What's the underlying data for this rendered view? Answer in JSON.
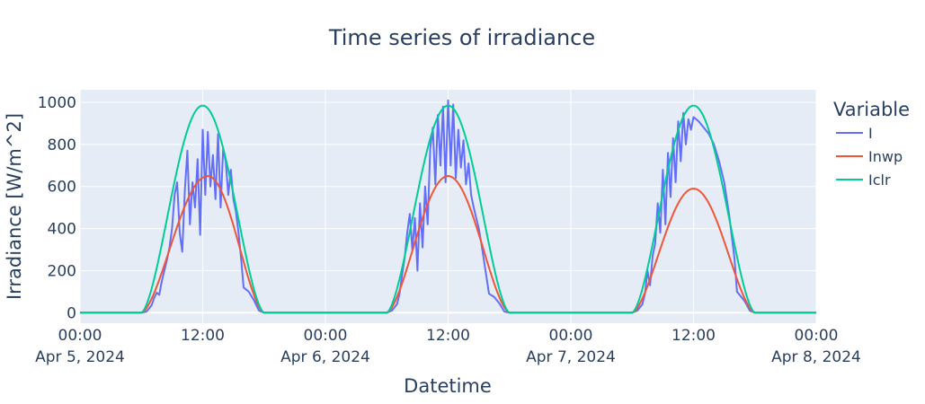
{
  "chart_data": {
    "type": "line",
    "title": "Time series of irradiance",
    "xlabel": "Datetime",
    "ylabel": "Irradiance [W/m^2]",
    "xlim": [
      "2024-04-05T00:00",
      "2024-04-08T00:00"
    ],
    "ylim": [
      -50,
      1060
    ],
    "y_ticks": [
      0,
      200,
      400,
      600,
      800,
      1000
    ],
    "y_tick_labels": [
      "0",
      "200",
      "400",
      "600",
      "800",
      "1000"
    ],
    "x_ticks": [
      "2024-04-05T00:00",
      "2024-04-05T12:00",
      "2024-04-06T00:00",
      "2024-04-06T12:00",
      "2024-04-07T00:00",
      "2024-04-07T12:00",
      "2024-04-08T00:00"
    ],
    "x_tick_labels": [
      {
        "time": "00:00",
        "date": "Apr 5, 2024"
      },
      {
        "time": "12:00",
        "date": ""
      },
      {
        "time": "00:00",
        "date": "Apr 6, 2024"
      },
      {
        "time": "12:00",
        "date": ""
      },
      {
        "time": "00:00",
        "date": "Apr 7, 2024"
      },
      {
        "time": "12:00",
        "date": ""
      },
      {
        "time": "00:00",
        "date": "Apr 8, 2024"
      }
    ],
    "grid": true,
    "legend": {
      "title": "Variable",
      "position": "right"
    },
    "series": [
      {
        "name": "I",
        "color": "#636efa",
        "points": [
          [
            "2024-04-05T00:00",
            0
          ],
          [
            "2024-04-05T06:00",
            0
          ],
          [
            "2024-04-05T06:30",
            5
          ],
          [
            "2024-04-05T07:00",
            35
          ],
          [
            "2024-04-05T07:15",
            70
          ],
          [
            "2024-04-05T07:30",
            95
          ],
          [
            "2024-04-05T07:45",
            85
          ],
          [
            "2024-04-05T08:00",
            150
          ],
          [
            "2024-04-05T08:15",
            200
          ],
          [
            "2024-04-05T08:30",
            250
          ],
          [
            "2024-04-05T08:45",
            310
          ],
          [
            "2024-04-05T09:00",
            400
          ],
          [
            "2024-04-05T09:15",
            560
          ],
          [
            "2024-04-05T09:30",
            620
          ],
          [
            "2024-04-05T09:45",
            380
          ],
          [
            "2024-04-05T10:00",
            290
          ],
          [
            "2024-04-05T10:15",
            580
          ],
          [
            "2024-04-05T10:30",
            770
          ],
          [
            "2024-04-05T10:45",
            420
          ],
          [
            "2024-04-05T11:00",
            620
          ],
          [
            "2024-04-05T11:15",
            500
          ],
          [
            "2024-04-05T11:30",
            730
          ],
          [
            "2024-04-05T11:45",
            370
          ],
          [
            "2024-04-05T12:00",
            870
          ],
          [
            "2024-04-05T12:15",
            560
          ],
          [
            "2024-04-05T12:30",
            860
          ],
          [
            "2024-04-05T12:45",
            600
          ],
          [
            "2024-04-05T13:00",
            750
          ],
          [
            "2024-04-05T13:15",
            540
          ],
          [
            "2024-04-05T13:30",
            850
          ],
          [
            "2024-04-05T13:45",
            500
          ],
          [
            "2024-04-05T14:00",
            780
          ],
          [
            "2024-04-05T14:15",
            720
          ],
          [
            "2024-04-05T14:30",
            560
          ],
          [
            "2024-04-05T14:45",
            680
          ],
          [
            "2024-04-05T15:00",
            540
          ],
          [
            "2024-04-05T15:15",
            480
          ],
          [
            "2024-04-05T15:30",
            380
          ],
          [
            "2024-04-05T15:45",
            260
          ],
          [
            "2024-04-05T16:00",
            120
          ],
          [
            "2024-04-05T16:30",
            100
          ],
          [
            "2024-04-05T17:00",
            60
          ],
          [
            "2024-04-05T17:30",
            10
          ],
          [
            "2024-04-05T18:00",
            0
          ],
          [
            "2024-04-06T06:00",
            0
          ],
          [
            "2024-04-06T06:30",
            10
          ],
          [
            "2024-04-06T07:00",
            40
          ],
          [
            "2024-04-06T07:15",
            90
          ],
          [
            "2024-04-06T07:30",
            180
          ],
          [
            "2024-04-06T07:45",
            260
          ],
          [
            "2024-04-06T08:00",
            380
          ],
          [
            "2024-04-06T08:15",
            470
          ],
          [
            "2024-04-06T08:30",
            300
          ],
          [
            "2024-04-06T08:45",
            450
          ],
          [
            "2024-04-06T09:00",
            200
          ],
          [
            "2024-04-06T09:15",
            520
          ],
          [
            "2024-04-06T09:30",
            310
          ],
          [
            "2024-04-06T09:45",
            600
          ],
          [
            "2024-04-06T10:00",
            420
          ],
          [
            "2024-04-06T10:15",
            780
          ],
          [
            "2024-04-06T10:30",
            880
          ],
          [
            "2024-04-06T10:45",
            610
          ],
          [
            "2024-04-06T11:00",
            940
          ],
          [
            "2024-04-06T11:15",
            700
          ],
          [
            "2024-04-06T11:30",
            980
          ],
          [
            "2024-04-06T11:45",
            620
          ],
          [
            "2024-04-06T12:00",
            1010
          ],
          [
            "2024-04-06T12:15",
            700
          ],
          [
            "2024-04-06T12:30",
            990
          ],
          [
            "2024-04-06T12:45",
            640
          ],
          [
            "2024-04-06T13:00",
            870
          ],
          [
            "2024-04-06T13:15",
            690
          ],
          [
            "2024-04-06T13:30",
            820
          ],
          [
            "2024-04-06T13:45",
            610
          ],
          [
            "2024-04-06T14:00",
            710
          ],
          [
            "2024-04-06T14:15",
            560
          ],
          [
            "2024-04-06T14:30",
            500
          ],
          [
            "2024-04-06T14:45",
            450
          ],
          [
            "2024-04-06T15:00",
            400
          ],
          [
            "2024-04-06T15:15",
            330
          ],
          [
            "2024-04-06T15:30",
            250
          ],
          [
            "2024-04-06T15:45",
            170
          ],
          [
            "2024-04-06T16:00",
            90
          ],
          [
            "2024-04-06T16:30",
            75
          ],
          [
            "2024-04-06T17:00",
            45
          ],
          [
            "2024-04-06T17:30",
            5
          ],
          [
            "2024-04-06T18:00",
            0
          ],
          [
            "2024-04-07T06:00",
            0
          ],
          [
            "2024-04-07T06:30",
            10
          ],
          [
            "2024-04-07T07:00",
            40
          ],
          [
            "2024-04-07T07:15",
            90
          ],
          [
            "2024-04-07T07:30",
            200
          ],
          [
            "2024-04-07T07:45",
            130
          ],
          [
            "2024-04-07T08:00",
            270
          ],
          [
            "2024-04-07T08:15",
            330
          ],
          [
            "2024-04-07T08:30",
            520
          ],
          [
            "2024-04-07T08:45",
            380
          ],
          [
            "2024-04-07T09:00",
            680
          ],
          [
            "2024-04-07T09:15",
            420
          ],
          [
            "2024-04-07T09:30",
            760
          ],
          [
            "2024-04-07T09:45",
            550
          ],
          [
            "2024-04-07T10:00",
            830
          ],
          [
            "2024-04-07T10:15",
            620
          ],
          [
            "2024-04-07T10:30",
            910
          ],
          [
            "2024-04-07T10:45",
            720
          ],
          [
            "2024-04-07T11:00",
            950
          ],
          [
            "2024-04-07T11:15",
            800
          ],
          [
            "2024-04-07T11:30",
            920
          ],
          [
            "2024-04-07T11:45",
            870
          ],
          [
            "2024-04-07T12:00",
            930
          ],
          [
            "2024-04-07T12:30",
            910
          ],
          [
            "2024-04-07T13:00",
            880
          ],
          [
            "2024-04-07T13:30",
            850
          ],
          [
            "2024-04-07T14:00",
            800
          ],
          [
            "2024-04-07T14:30",
            720
          ],
          [
            "2024-04-07T15:00",
            620
          ],
          [
            "2024-04-07T15:30",
            460
          ],
          [
            "2024-04-07T16:00",
            260
          ],
          [
            "2024-04-07T16:15",
            100
          ],
          [
            "2024-04-07T16:30",
            85
          ],
          [
            "2024-04-07T17:00",
            55
          ],
          [
            "2024-04-07T17:30",
            10
          ],
          [
            "2024-04-07T18:00",
            0
          ],
          [
            "2024-04-08T00:00",
            0
          ]
        ]
      },
      {
        "name": "Inwp",
        "color": "#ef553b",
        "days": [
          {
            "start": "2024-04-05T06:00",
            "peak_time": "2024-04-05T12:30",
            "end": "2024-04-05T18:00",
            "peak": 650
          },
          {
            "start": "2024-04-06T06:00",
            "peak_time": "2024-04-06T12:00",
            "end": "2024-04-06T18:00",
            "peak": 650
          },
          {
            "start": "2024-04-07T06:00",
            "peak_time": "2024-04-07T12:00",
            "end": "2024-04-07T18:00",
            "peak": 590
          }
        ]
      },
      {
        "name": "Iclr",
        "color": "#00cc96",
        "days": [
          {
            "start": "2024-04-05T06:00",
            "peak_time": "2024-04-05T12:00",
            "end": "2024-04-05T18:00",
            "peak": 985
          },
          {
            "start": "2024-04-06T06:00",
            "peak_time": "2024-04-06T12:00",
            "end": "2024-04-06T18:00",
            "peak": 985
          },
          {
            "start": "2024-04-07T06:00",
            "peak_time": "2024-04-07T12:00",
            "end": "2024-04-07T18:00",
            "peak": 985
          }
        ]
      }
    ]
  }
}
